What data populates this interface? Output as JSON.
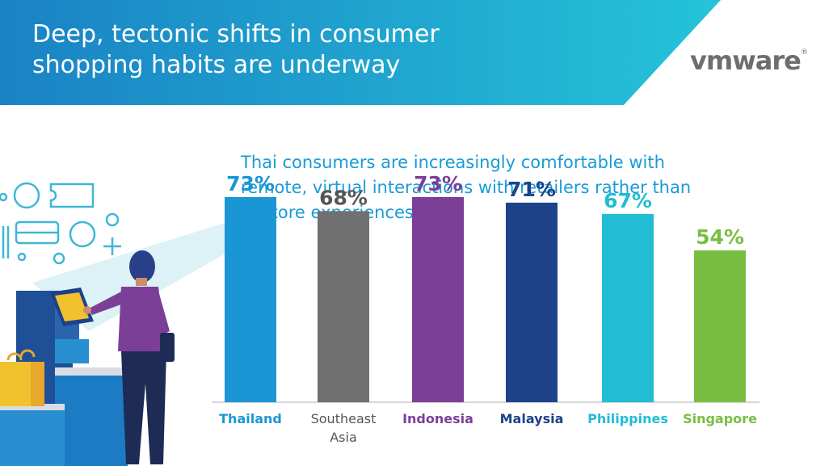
{
  "header": {
    "title_line1": "Deep, tectonic shifts in consumer",
    "title_line2": "shopping habits are underway",
    "logo_text": "vmware",
    "logo_registered": "®",
    "banner_color_start": "#1a82c4",
    "banner_color_end": "#25c3d9"
  },
  "subtitle": "Thai consumers are increasingly comfortable with remote, virtual interactions with retailers rather than in-store experiences",
  "chart_data": {
    "type": "bar",
    "categories": [
      "Thailand",
      "Southeast Asia",
      "Indonesia",
      "Malaysia",
      "Philippines",
      "Singapore"
    ],
    "category_lines": [
      [
        "Thailand"
      ],
      [
        "Southeast",
        "Asia"
      ],
      [
        "Indonesia"
      ],
      [
        "Malaysia"
      ],
      [
        "Philippines"
      ],
      [
        "Singapore"
      ]
    ],
    "values": [
      73,
      68,
      73,
      71,
      67,
      54
    ],
    "value_labels": [
      "73%",
      "68%",
      "73%",
      "71%",
      "67%",
      "54%"
    ],
    "colors": [
      "#1b96d4",
      "#707070",
      "#7b3f98",
      "#1d428a",
      "#22bcd5",
      "#78be43"
    ],
    "label_colors": [
      "#1b96d4",
      "#555555",
      "#7b3f98",
      "#1d428a",
      "#22bcd5",
      "#78be43"
    ],
    "unit": "%",
    "ylim": [
      0,
      100
    ],
    "grid": false,
    "legend": "none"
  }
}
